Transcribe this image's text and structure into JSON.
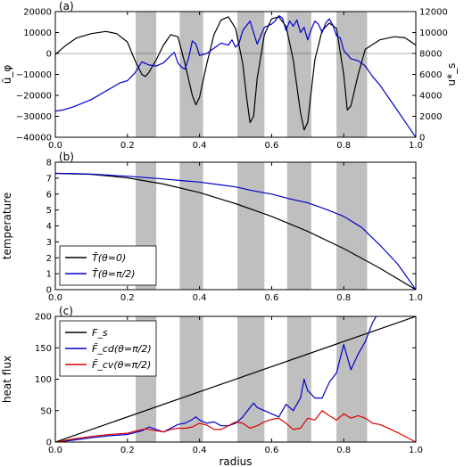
{
  "chart_data": [
    {
      "id": "a",
      "type": "line",
      "panel_label": "(a)",
      "ylabel": "ū_φ",
      "y2label": "u*_s",
      "xlim": [
        0.0,
        1.0
      ],
      "ylim": [
        -40000,
        20000
      ],
      "y2lim": [
        0,
        12000
      ],
      "xticks": [
        "0.0",
        "0.2",
        "0.4",
        "0.6",
        "0.8",
        "1.0"
      ],
      "yticks": [
        "−40000",
        "−30000",
        "−20000",
        "−10000",
        "0",
        "10000",
        "20000"
      ],
      "y2ticks": [
        "0",
        "2000",
        "4000",
        "6000",
        "8000",
        "10000",
        "12000"
      ],
      "zero_line": true,
      "colors": {
        "left": "#000000",
        "right": "#0000cc"
      },
      "series": [
        {
          "axis": "left",
          "color": "#000000",
          "x": [
            0.0,
            0.03,
            0.06,
            0.1,
            0.14,
            0.17,
            0.2,
            0.22,
            0.24,
            0.25,
            0.26,
            0.28,
            0.3,
            0.32,
            0.34,
            0.36,
            0.38,
            0.39,
            0.4,
            0.42,
            0.44,
            0.46,
            0.48,
            0.5,
            0.52,
            0.53,
            0.54,
            0.55,
            0.56,
            0.58,
            0.6,
            0.62,
            0.64,
            0.66,
            0.68,
            0.69,
            0.7,
            0.71,
            0.72,
            0.74,
            0.76,
            0.78,
            0.8,
            0.81,
            0.82,
            0.84,
            0.86,
            0.9,
            0.94,
            0.97,
            1.0
          ],
          "y": [
            -500,
            4000,
            7500,
            9500,
            10500,
            9500,
            5500,
            -3000,
            -10000,
            -11000,
            -9000,
            -3000,
            4000,
            9000,
            8000,
            -5000,
            -20000,
            -24500,
            -21000,
            -5000,
            9000,
            16000,
            17500,
            12000,
            -5000,
            -20000,
            -33000,
            -30000,
            -12000,
            9000,
            16500,
            17500,
            13000,
            -3000,
            -28000,
            -36500,
            -33000,
            -18000,
            -3000,
            11000,
            14500,
            12000,
            -10000,
            -27000,
            -25000,
            -10000,
            2000,
            6500,
            8000,
            7500,
            4000
          ]
        },
        {
          "axis": "right",
          "color": "#0000cc",
          "x": [
            0.0,
            0.02,
            0.05,
            0.1,
            0.15,
            0.18,
            0.2,
            0.22,
            0.24,
            0.26,
            0.28,
            0.3,
            0.32,
            0.33,
            0.34,
            0.35,
            0.36,
            0.37,
            0.38,
            0.39,
            0.4,
            0.42,
            0.44,
            0.46,
            0.48,
            0.49,
            0.5,
            0.51,
            0.52,
            0.54,
            0.56,
            0.58,
            0.6,
            0.61,
            0.62,
            0.63,
            0.64,
            0.65,
            0.66,
            0.67,
            0.68,
            0.69,
            0.7,
            0.71,
            0.72,
            0.73,
            0.74,
            0.75,
            0.76,
            0.77,
            0.78,
            0.79,
            0.8,
            0.82,
            0.84,
            0.86,
            0.88,
            0.9,
            0.92,
            0.95,
            1.0
          ],
          "y": [
            2500,
            2600,
            2900,
            3600,
            4600,
            5200,
            5400,
            6100,
            7200,
            6900,
            6800,
            7100,
            7800,
            8100,
            7100,
            6700,
            6500,
            7600,
            9200,
            8900,
            7800,
            8000,
            8500,
            9000,
            8800,
            9300,
            8600,
            9000,
            10200,
            11100,
            8900,
            10500,
            10800,
            11100,
            11600,
            11400,
            10200,
            11100,
            10600,
            11200,
            10000,
            10500,
            9300,
            10300,
            11100,
            10800,
            10000,
            10900,
            11300,
            10700,
            9700,
            9500,
            8300,
            7500,
            7300,
            6800,
            5800,
            5000,
            4000,
            2500,
            0
          ]
        }
      ],
      "bands": [
        [
          0.223,
          0.28
        ],
        [
          0.345,
          0.41
        ],
        [
          0.505,
          0.58
        ],
        [
          0.643,
          0.71
        ],
        [
          0.78,
          0.865
        ]
      ]
    },
    {
      "id": "b",
      "type": "line",
      "panel_label": "(b)",
      "ylabel": "temperature",
      "xlim": [
        0.0,
        1.0
      ],
      "ylim": [
        0,
        8
      ],
      "xticks": [
        "0.0",
        "0.2",
        "0.4",
        "0.6",
        "0.8",
        "1.0"
      ],
      "yticks": [
        "0",
        "1",
        "2",
        "3",
        "4",
        "5",
        "6",
        "7",
        "8"
      ],
      "legend": "bottom-left",
      "series": [
        {
          "name": "T̄(θ=0)",
          "color": "#000000",
          "x": [
            0.0,
            0.1,
            0.2,
            0.3,
            0.4,
            0.5,
            0.6,
            0.7,
            0.8,
            0.9,
            1.0
          ],
          "y": [
            7.3,
            7.24,
            7.02,
            6.63,
            6.09,
            5.4,
            4.6,
            3.66,
            2.58,
            1.35,
            0.0
          ]
        },
        {
          "name": "T̄(θ=π/2)",
          "color": "#0000cc",
          "x": [
            0.0,
            0.05,
            0.1,
            0.2,
            0.3,
            0.35,
            0.4,
            0.45,
            0.5,
            0.55,
            0.6,
            0.65,
            0.7,
            0.75,
            0.8,
            0.85,
            0.9,
            0.95,
            1.0
          ],
          "y": [
            7.3,
            7.29,
            7.25,
            7.12,
            6.95,
            6.85,
            6.75,
            6.6,
            6.45,
            6.2,
            6.0,
            5.7,
            5.45,
            5.05,
            4.6,
            3.9,
            2.8,
            1.6,
            0.0
          ]
        }
      ],
      "bands": [
        [
          0.223,
          0.28
        ],
        [
          0.345,
          0.41
        ],
        [
          0.505,
          0.58
        ],
        [
          0.643,
          0.71
        ],
        [
          0.78,
          0.865
        ]
      ]
    },
    {
      "id": "c",
      "type": "line",
      "panel_label": "(c)",
      "ylabel": "heat flux",
      "xlabel": "radius",
      "xlim": [
        0.0,
        1.0
      ],
      "ylim": [
        0,
        200
      ],
      "xticks": [
        "0.0",
        "0.2",
        "0.4",
        "0.6",
        "0.8",
        "1.0"
      ],
      "yticks": [
        "0",
        "50",
        "100",
        "150",
        "200"
      ],
      "legend": "top-left",
      "series": [
        {
          "name": "F_s",
          "color": "#000000",
          "x": [
            0.0,
            1.0
          ],
          "y": [
            0,
            200
          ]
        },
        {
          "name": "F̄_cd(θ=π/2)",
          "color": "#0000cc",
          "x": [
            0.0,
            0.05,
            0.1,
            0.15,
            0.2,
            0.24,
            0.26,
            0.28,
            0.3,
            0.32,
            0.34,
            0.36,
            0.38,
            0.39,
            0.4,
            0.42,
            0.44,
            0.46,
            0.48,
            0.5,
            0.52,
            0.54,
            0.55,
            0.56,
            0.58,
            0.6,
            0.62,
            0.64,
            0.66,
            0.68,
            0.69,
            0.7,
            0.72,
            0.74,
            0.76,
            0.78,
            0.8,
            0.81,
            0.82,
            0.84,
            0.86,
            0.88,
            0.89
          ],
          "y": [
            0,
            3,
            7,
            10,
            12,
            18,
            24,
            20,
            16,
            22,
            28,
            30,
            36,
            40,
            35,
            30,
            32,
            26,
            26,
            30,
            40,
            55,
            62,
            55,
            50,
            45,
            40,
            60,
            50,
            70,
            100,
            82,
            70,
            70,
            95,
            110,
            155,
            135,
            115,
            140,
            160,
            190,
            200
          ]
        },
        {
          "name": "F̄_cv(θ=π/2)",
          "color": "#dd0000",
          "x": [
            0.0,
            0.05,
            0.1,
            0.15,
            0.2,
            0.22,
            0.25,
            0.28,
            0.3,
            0.32,
            0.34,
            0.36,
            0.38,
            0.4,
            0.42,
            0.44,
            0.46,
            0.48,
            0.5,
            0.52,
            0.54,
            0.56,
            0.58,
            0.6,
            0.62,
            0.64,
            0.66,
            0.68,
            0.7,
            0.72,
            0.74,
            0.76,
            0.78,
            0.8,
            0.82,
            0.84,
            0.86,
            0.88,
            0.9,
            0.92,
            0.95,
            1.0
          ],
          "y": [
            0,
            5,
            9,
            12,
            14,
            17,
            21,
            18,
            16,
            20,
            22,
            22,
            24,
            30,
            27,
            20,
            20,
            26,
            32,
            30,
            22,
            26,
            32,
            36,
            38,
            30,
            20,
            22,
            38,
            35,
            50,
            42,
            35,
            45,
            38,
            42,
            38,
            30,
            28,
            23,
            15,
            0
          ]
        }
      ],
      "bands": [
        [
          0.223,
          0.28
        ],
        [
          0.345,
          0.41
        ],
        [
          0.505,
          0.58
        ],
        [
          0.643,
          0.71
        ],
        [
          0.78,
          0.865
        ]
      ]
    }
  ]
}
